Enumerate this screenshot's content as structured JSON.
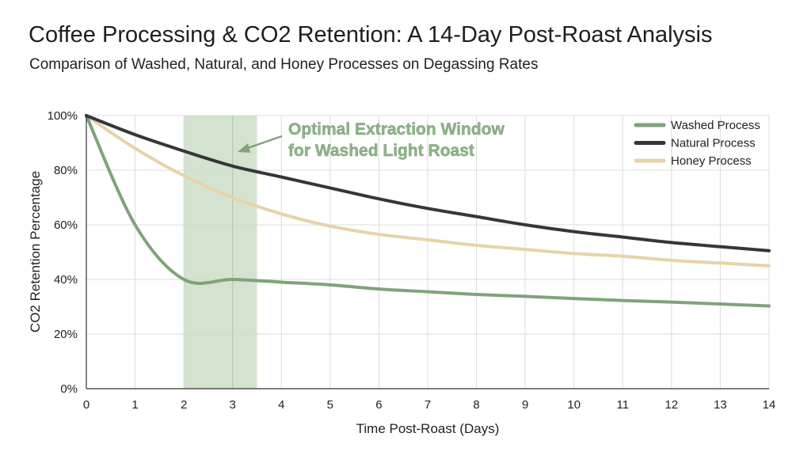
{
  "chart_data": {
    "type": "line",
    "title": "Coffee Processing & CO2 Retention: A 14-Day Post-Roast Analysis",
    "subtitle": "Comparison of Washed, Natural, and Honey Processes on Degassing Rates",
    "xlabel": "Time Post-Roast (Days)",
    "ylabel": "CO2 Retention Percentage",
    "xlim": [
      0,
      14
    ],
    "ylim": [
      0,
      100
    ],
    "x_ticks": [
      "0",
      "1",
      "2",
      "3",
      "4",
      "5",
      "6",
      "7",
      "8",
      "9",
      "10",
      "11",
      "12",
      "13",
      "14"
    ],
    "y_ticks": [
      "0%",
      "20%",
      "40%",
      "60%",
      "80%",
      "100%"
    ],
    "grid": true,
    "legend_position": "top-right",
    "x": [
      0,
      1,
      2,
      3,
      4,
      5,
      6,
      7,
      8,
      9,
      10,
      11,
      12,
      13,
      14
    ],
    "series": [
      {
        "name": "Washed Process",
        "color": "#7fa37a",
        "values": [
          100,
          60,
          40,
          40,
          39,
          38,
          36.5,
          35.5,
          34.5,
          33.8,
          33,
          32.3,
          31.7,
          31,
          30.3
        ]
      },
      {
        "name": "Natural Process",
        "color": "#35363a",
        "values": [
          100,
          93,
          87,
          81.5,
          77.5,
          73.5,
          69.5,
          66,
          63,
          60,
          57.5,
          55.5,
          53.5,
          52,
          50.5
        ]
      },
      {
        "name": "Honey Process",
        "color": "#e6d3a8",
        "values": [
          100,
          88,
          78,
          70,
          64,
          59.5,
          56.5,
          54.5,
          52.5,
          51,
          49.5,
          48.5,
          47,
          46,
          45
        ]
      }
    ],
    "highlight_band": {
      "x_start": 2,
      "x_end": 3.5,
      "color": "#c9dcc3"
    },
    "annotation": {
      "line1": "Optimal Extraction Window",
      "line2": "for Washed Light Roast",
      "color": "#8fb58a"
    }
  }
}
